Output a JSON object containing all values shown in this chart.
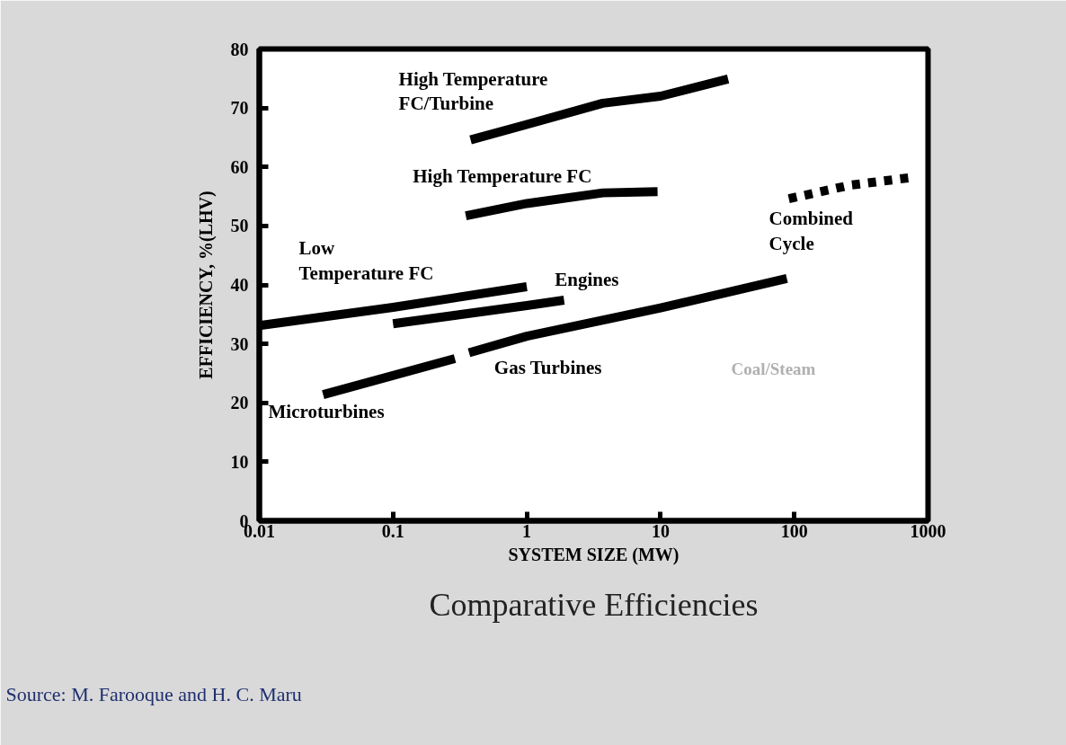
{
  "chart_data": {
    "type": "line",
    "title": "Comparative Efficiencies",
    "xlabel": "SYSTEM SIZE (MW)",
    "ylabel": "EFFICIENCY, %(LHV)",
    "log": "x",
    "xlim": [
      0.01,
      1000
    ],
    "xticks": [
      0.01,
      0.1,
      1,
      10,
      100,
      1000
    ],
    "ylim": [
      0,
      80
    ],
    "yticks": [
      0,
      10,
      20,
      30,
      40,
      50,
      60,
      70,
      80
    ],
    "grid": false,
    "legend": false,
    "marker": "none",
    "series": [
      {
        "name": "High Temperature\nFC/Turbine",
        "color": "#000000",
        "x": [
          0.38,
          1,
          3.7,
          10,
          32
        ],
        "values": [
          64.6,
          67.2,
          70.8,
          72.0,
          74.9
        ]
      },
      {
        "name": "High Temperature FC",
        "color": "#000000",
        "x": [
          0.35,
          1,
          3.7,
          9.5
        ],
        "values": [
          51.7,
          53.8,
          55.6,
          55.8
        ]
      },
      {
        "name": "Low\nTemperature FC",
        "color": "#000000",
        "x": [
          0.01,
          0.1,
          1
        ],
        "values": [
          33.1,
          36.2,
          39.7
        ]
      },
      {
        "name": "Engines",
        "color": "#000000",
        "x": [
          0.1,
          1,
          1.9
        ],
        "values": [
          33.4,
          36.5,
          37.4
        ]
      },
      {
        "name": "Microturbines",
        "color": "#000000",
        "x": [
          0.03,
          0.29
        ],
        "values": [
          21.4,
          27.5
        ]
      },
      {
        "name": "Gas Turbines",
        "color": "#000000",
        "x": [
          0.37,
          1,
          10,
          88
        ],
        "values": [
          28.5,
          31.3,
          36.1,
          41.1
        ]
      },
      {
        "name": "Combined\nCycle",
        "color": "#000000",
        "line_style": "dotted",
        "x": [
          91,
          260,
          810
        ],
        "values": [
          54.6,
          56.9,
          58.3
        ]
      }
    ],
    "annotations": [
      "Coal/Steam",
      "Source: M. Farooque and H. C. Maru"
    ]
  }
}
